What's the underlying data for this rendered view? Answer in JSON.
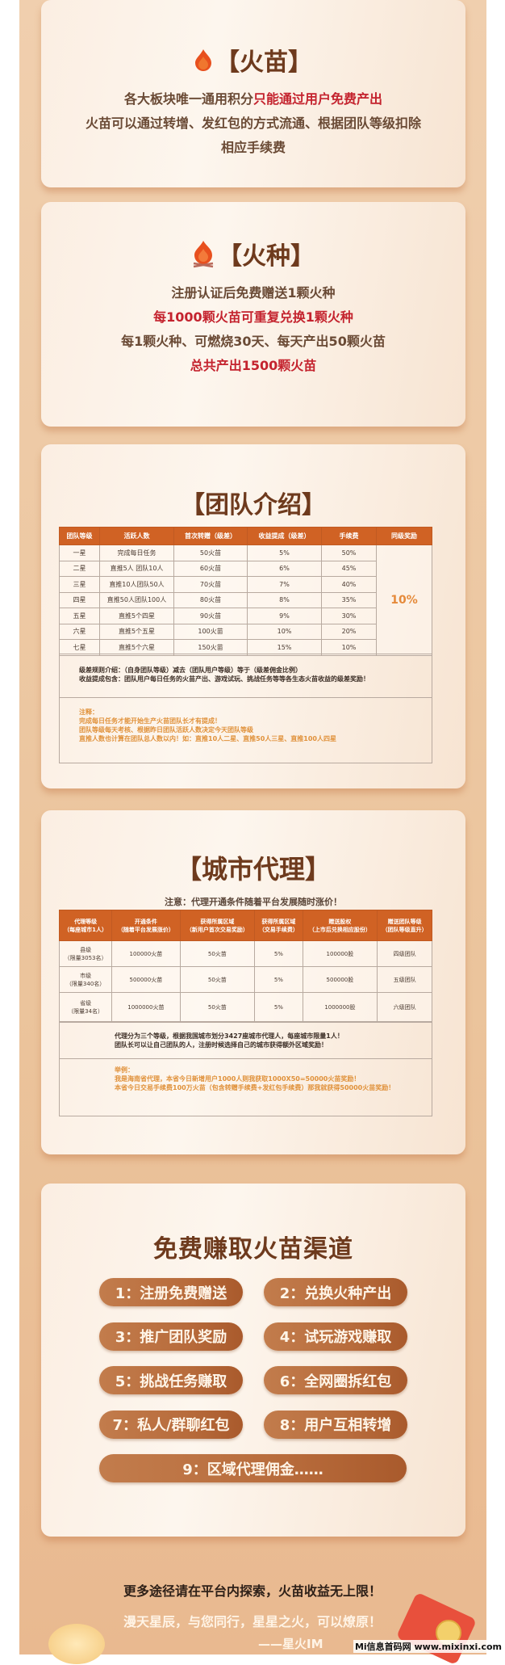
{
  "huomiao": {
    "title": "【火苗】",
    "line1_a": "各大板块唯一通用积分",
    "line1_b": "只能通过用户免费产出",
    "line2": "火苗可以通过转增、发红包的方式流通、根据团队等级扣除",
    "line3": "相应手续费"
  },
  "huozhong": {
    "title": "【火种】",
    "lines": [
      "注册认证后免费赠送1颗火种",
      "每1000颗火苗可重复兑换1颗火种",
      "每1颗火种、可燃烧30天、每天产出50颗火苗",
      "总共产出1500颗火苗"
    ]
  },
  "team": {
    "title": "【团队介绍】",
    "headers": [
      "团队等级",
      "活跃人数",
      "首次转赠（级差）",
      "收益提成（级差）",
      "手续费",
      "同级奖励"
    ],
    "rows": [
      [
        "一星",
        "完成每日任务",
        "50火苗",
        "5%",
        "50%"
      ],
      [
        "二星",
        "直推5人 团队10人",
        "60火苗",
        "6%",
        "45%"
      ],
      [
        "三星",
        "直推10人团队50人",
        "70火苗",
        "7%",
        "40%"
      ],
      [
        "四星",
        "直推50人团队100人",
        "80火苗",
        "8%",
        "35%"
      ],
      [
        "五星",
        "直推5个四星",
        "90火苗",
        "9%",
        "30%"
      ],
      [
        "六星",
        "直推5个五星",
        "100火苗",
        "10%",
        "20%"
      ],
      [
        "七星",
        "直推5个六星",
        "150火苗",
        "15%",
        "10%"
      ]
    ],
    "same_level_reward": "10%",
    "rule1": "级差规则介绍：（自身团队等级）减去（团队用户等级）等于（级差佣金比例）",
    "rule2": "收益提成包含：团队用户每日任务的火苗产出、游戏试玩、挑战任务等等各生态火苗收益的级差奖励！",
    "notes": [
      "注释：",
      "完成每日任务才能开始生产火苗团队长才有提成！",
      "团队等级每天考核、根据昨日团队活跃人数决定今天团队等级",
      "直推人数也计算在团队总人数以内！如：直推10人二星、直推50人三星、直推100人四星"
    ]
  },
  "city": {
    "title": "【城市代理】",
    "notice": "注意：代理开通条件随着平台发展随时涨价！",
    "headers": [
      [
        "代理等级",
        "（每座城市1人）"
      ],
      [
        "开通条件",
        "（随着平台发展涨价）"
      ],
      [
        "获得所属区域",
        "（新用户首次交易奖励）"
      ],
      [
        "获得所属区域",
        "（交易手续费）"
      ],
      [
        "赠送股权",
        "（上市后兑换相应股份）"
      ],
      [
        "赠送团队等级",
        "（团队等级直升）"
      ]
    ],
    "rows": [
      [
        [
          "县级",
          "（限量3053名）"
        ],
        "100000火苗",
        "50火苗",
        "5%",
        "100000股",
        "四级团队"
      ],
      [
        [
          "市级",
          "（限量340名）"
        ],
        "500000火苗",
        "50火苗",
        "5%",
        "500000股",
        "五级团队"
      ],
      [
        [
          "省级",
          "（限量34名）"
        ],
        "1000000火苗",
        "50火苗",
        "5%",
        "1000000股",
        "六级团队"
      ]
    ],
    "desc1": "代理分为三个等级，根据我国城市划分3427座城市代理人，每座城市限量1人！",
    "desc2": "团队长可以让自己团队的人，注册时候选择自己的城市获得额外区域奖励！",
    "example": [
      "举例：",
      "我是海南省代理，本省今日新增用户1000人则我获取1000X50=50000火苗奖励！",
      "本省今日交易手续费100万火苗（包含转赠手续费+发红包手续费）那我就获得50000火苗奖励！"
    ]
  },
  "channels": {
    "title": "免费赚取火苗渠道",
    "items": [
      "1：注册免费赠送",
      "2：兑换火种产出",
      "3：推广团队奖励",
      "4：试玩游戏赚取",
      "5：挑战任务赚取",
      "6：全网圈拆红包",
      "7：私人/群聊红包",
      "8：用户互相转增",
      "9：区域代理佣金……"
    ]
  },
  "footer": {
    "line1": "更多途径请在平台内探索，火苗收益无上限！",
    "slogan": "漫天星辰，与您同行，星星之火，可以燎原！",
    "signature": "——星火IM"
  },
  "watermark": "Mi信息首码网 www.mixinxi.com"
}
